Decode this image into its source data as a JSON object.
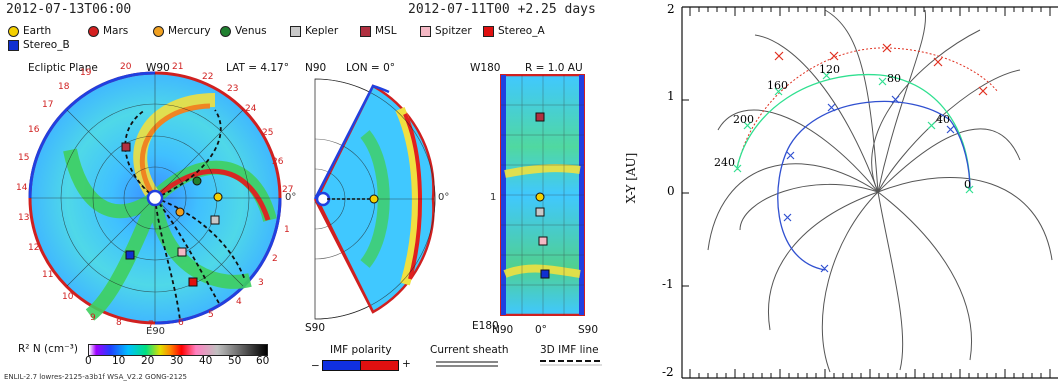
{
  "header": {
    "left_timestamp": "2012-07-13T06:00",
    "right_timestamp": "2012-07-11T00 +2.25 days"
  },
  "legend": {
    "items": [
      {
        "label": "Earth",
        "shape": "circle",
        "color": "#f4d000"
      },
      {
        "label": "Mars",
        "shape": "circle",
        "color": "#d42020"
      },
      {
        "label": "Mercury",
        "shape": "circle",
        "color": "#f0a020"
      },
      {
        "label": "Venus",
        "shape": "circle",
        "color": "#208030"
      },
      {
        "label": "Kepler",
        "shape": "square",
        "color": "#c8c8c8"
      },
      {
        "label": "MSL",
        "shape": "square",
        "color": "#b03040"
      },
      {
        "label": "Spitzer",
        "shape": "square",
        "color": "#f4b8c4"
      },
      {
        "label": "Stereo_A",
        "shape": "square",
        "color": "#e01010"
      },
      {
        "label": "Stereo_B",
        "shape": "square",
        "color": "#1030d0"
      }
    ]
  },
  "panels": {
    "ecliptic": {
      "title": "Ecliptic Plane",
      "lat": "LAT = 4.17°",
      "top_label": "W90",
      "bottom_label": "E90",
      "right_label": "0°",
      "carrington_ticks": [
        "19",
        "20",
        "21",
        "22",
        "23",
        "24",
        "25",
        "26",
        "27",
        "1",
        "2",
        "3",
        "4",
        "5",
        "6",
        "7",
        "8",
        "9",
        "10",
        "11",
        "12",
        "13",
        "14",
        "15",
        "16",
        "17",
        "18"
      ]
    },
    "meridional": {
      "top_label": "N90",
      "lon": "LON = 0°",
      "bottom_label": "S90",
      "right_label": "0°"
    },
    "radial": {
      "top_left": "W180",
      "r_label": "R = 1.0 AU",
      "bottom_left": "E180",
      "left_tick": "1",
      "bottom_ticks": [
        "N90",
        "0°",
        "S90"
      ]
    }
  },
  "colorbar": {
    "label": "R² N (cm⁻³)",
    "ticks": [
      "0",
      "10",
      "20",
      "30",
      "40",
      "50",
      "60"
    ]
  },
  "bottom_legend": {
    "imf_polarity": "IMF polarity",
    "minus": "−",
    "plus": "+",
    "current_sheath": "Current sheath",
    "imf_line": "3D IMF line"
  },
  "footer_text": "ENLIL-2.7 lowres-2125-a3b1f WSA_V2.2 GONG-2125",
  "xy_plot": {
    "ylabel": "X-Y [AU]",
    "yticks": [
      "2",
      "1",
      "0",
      "-1",
      "-2"
    ],
    "labels": [
      "240",
      "200",
      "160",
      "120",
      "80",
      "40",
      "0"
    ],
    "colors": {
      "red": "#e03020",
      "green": "#30e090",
      "blue": "#3050d0",
      "gray": "#555555"
    }
  }
}
